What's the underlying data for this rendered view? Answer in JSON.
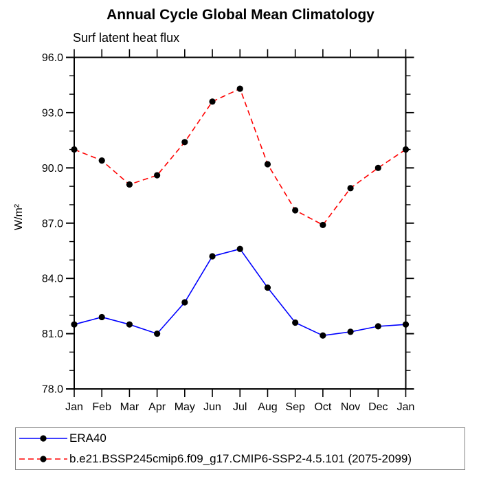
{
  "title": "Annual Cycle Global Mean Climatology",
  "subtitle": "Surf latent heat flux",
  "ylabel": "W/m²",
  "chart_data": {
    "type": "line",
    "categories": [
      "Jan",
      "Feb",
      "Mar",
      "Apr",
      "May",
      "Jun",
      "Jul",
      "Aug",
      "Sep",
      "Oct",
      "Nov",
      "Dec",
      "Jan"
    ],
    "series": [
      {
        "name": "ERA40",
        "color": "#0000ff",
        "line_style": "solid",
        "marker_color": "#000000",
        "values": [
          81.5,
          81.9,
          81.5,
          81.0,
          82.7,
          85.2,
          85.6,
          83.5,
          81.6,
          80.9,
          81.1,
          81.4,
          81.5
        ]
      },
      {
        "name": "b.e21.BSSP245cmip6.f09_g17.CMIP6-SSP2-4.5.101 (2075-2099)",
        "color": "#ff0000",
        "line_style": "dashed",
        "marker_color": "#000000",
        "values": [
          91.0,
          90.4,
          89.1,
          89.6,
          91.4,
          93.6,
          94.3,
          90.2,
          87.7,
          86.9,
          88.9,
          90.0,
          91.0
        ]
      }
    ],
    "ylim": [
      78.0,
      96.0
    ],
    "ytick_major": 3.0,
    "ytick_minor": 1.0,
    "ytick_label_format": "one_decimal",
    "grid": false,
    "legend_position": "bottom",
    "axis_color": "#000000",
    "text_color": "#000000"
  }
}
